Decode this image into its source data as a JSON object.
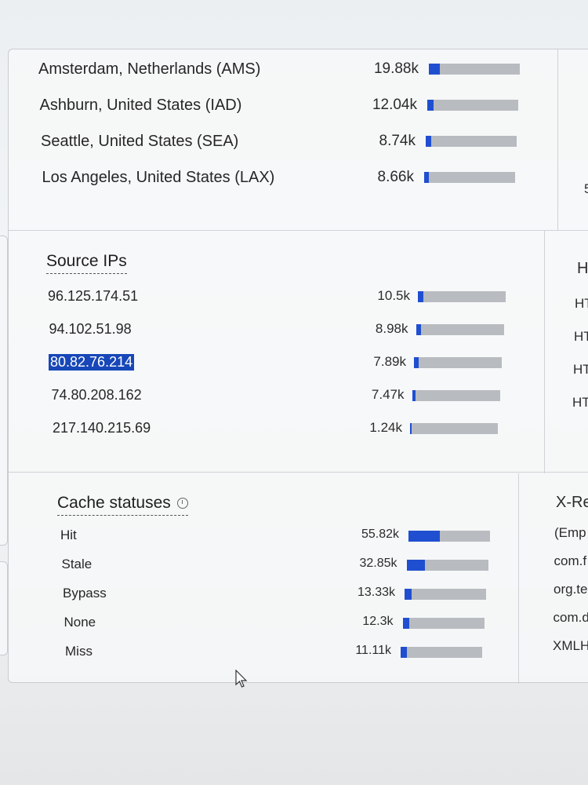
{
  "locations": [
    {
      "label": "Amsterdam, Netherlands (AMS)",
      "value": "19.88k",
      "fraction": 0.12
    },
    {
      "label": "Ashburn, United States (IAD)",
      "value": "12.04k",
      "fraction": 0.07
    },
    {
      "label": "Seattle, United States (SEA)",
      "value": "8.74k",
      "fraction": 0.06
    },
    {
      "label": "Los Angeles, United States (LAX)",
      "value": "8.66k",
      "fraction": 0.05
    }
  ],
  "source_ips": {
    "title": "Source IPs",
    "items": [
      {
        "label": "96.125.174.51",
        "value": "10.5k",
        "fraction": 0.06
      },
      {
        "label": "94.102.51.98",
        "value": "8.98k",
        "fraction": 0.05
      },
      {
        "label": "80.82.76.214",
        "value": "7.89k",
        "fraction": 0.05,
        "selected": true
      },
      {
        "label": "74.80.208.162",
        "value": "7.47k",
        "fraction": 0.04
      },
      {
        "label": "217.140.215.69",
        "value": "1.24k",
        "fraction": 0.01
      }
    ]
  },
  "cache_statuses": {
    "title": "Cache statuses",
    "icon": "clock-icon",
    "items": [
      {
        "label": "Hit",
        "value": "55.82k",
        "fraction": 0.38
      },
      {
        "label": "Stale",
        "value": "32.85k",
        "fraction": 0.22
      },
      {
        "label": "Bypass",
        "value": "13.33k",
        "fraction": 0.09
      },
      {
        "label": "None",
        "value": "12.3k",
        "fraction": 0.08
      },
      {
        "label": "Miss",
        "value": "11.11k",
        "fraction": 0.08
      }
    ]
  },
  "right_column": {
    "top": [
      "5"
    ],
    "middle_title": "H",
    "middle": [
      "HT",
      "HT",
      "HT",
      "HTT"
    ],
    "bottom_title": "X-Re",
    "bottom": [
      "(Emp",
      "com.f",
      "org.te",
      "com.d",
      "XMLHt"
    ]
  },
  "colors": {
    "bar_fill": "#1f4fd0",
    "bar_track": "#b8bbbf",
    "selection": "#1747b8"
  }
}
